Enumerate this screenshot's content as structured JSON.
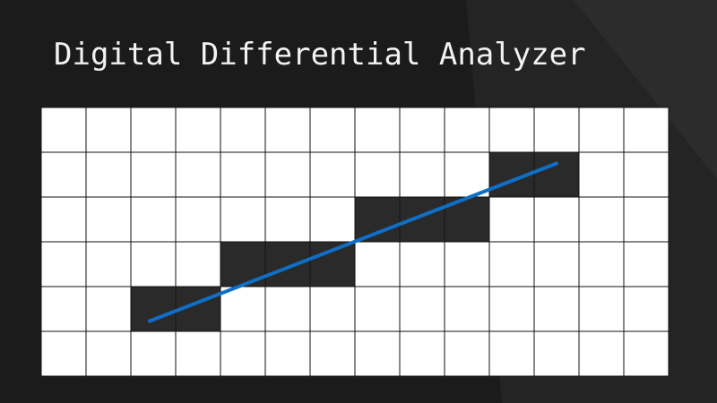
{
  "slide": {
    "title": "Digital Differential Analyzer"
  },
  "colors": {
    "background": "#1b1b1b",
    "background_panel_light": "#2b2b2b",
    "background_panel_lighter": "#3c3c3c",
    "cell_empty": "#ffffff",
    "cell_filled": "#2a2a2a",
    "grid_line": "#111111",
    "line": "#0f6fc6",
    "title_text": "#f2f2f2"
  },
  "grid": {
    "columns": 14,
    "rows": 6
  },
  "filled_cells": [
    {
      "col": 2,
      "row": 1
    },
    {
      "col": 3,
      "row": 1
    },
    {
      "col": 4,
      "row": 2
    },
    {
      "col": 5,
      "row": 2
    },
    {
      "col": 6,
      "row": 2
    },
    {
      "col": 7,
      "row": 3
    },
    {
      "col": 8,
      "row": 3
    },
    {
      "col": 9,
      "row": 3
    },
    {
      "col": 10,
      "row": 4
    },
    {
      "col": 11,
      "row": 4
    }
  ],
  "line": {
    "start": {
      "col": 2.42,
      "row": 1.23
    },
    "end": {
      "col": 11.5,
      "row": 4.75
    }
  }
}
